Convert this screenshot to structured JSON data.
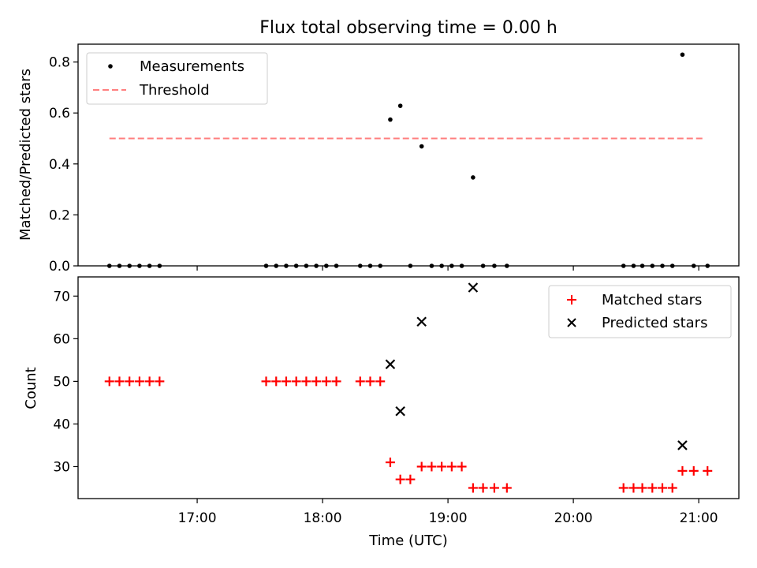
{
  "chart_data": [
    {
      "type": "scatter",
      "title": "Flux total observing time = 0.00 h",
      "ylabel": "Matched/Predicted stars",
      "xlabel": "",
      "xlim": [
        16.05,
        21.32
      ],
      "ylim": [
        0,
        0.87
      ],
      "yticks": [
        0.0,
        0.2,
        0.4,
        0.6,
        0.8
      ],
      "ytick_labels": [
        "0.0",
        "0.2",
        "0.4",
        "0.6",
        "0.8"
      ],
      "legend_position": "top-left",
      "grid": false,
      "series": [
        {
          "name": "Measurements",
          "marker": "dot",
          "color": "#000000",
          "points": [
            [
              16.3,
              0
            ],
            [
              16.38,
              0
            ],
            [
              16.46,
              0
            ],
            [
              16.54,
              0
            ],
            [
              16.62,
              0
            ],
            [
              16.7,
              0
            ],
            [
              17.55,
              0
            ],
            [
              17.63,
              0
            ],
            [
              17.71,
              0
            ],
            [
              17.79,
              0
            ],
            [
              17.87,
              0
            ],
            [
              17.95,
              0
            ],
            [
              18.03,
              0
            ],
            [
              18.11,
              0
            ],
            [
              18.3,
              0
            ],
            [
              18.38,
              0
            ],
            [
              18.46,
              0
            ],
            [
              18.54,
              0.574
            ],
            [
              18.62,
              0.628
            ],
            [
              18.7,
              0
            ],
            [
              18.79,
              0.469
            ],
            [
              18.87,
              0
            ],
            [
              18.95,
              0
            ],
            [
              19.03,
              0
            ],
            [
              19.11,
              0
            ],
            [
              19.2,
              0.347
            ],
            [
              19.28,
              0
            ],
            [
              19.37,
              0
            ],
            [
              19.47,
              0
            ],
            [
              20.4,
              0
            ],
            [
              20.48,
              0
            ],
            [
              20.55,
              0
            ],
            [
              20.63,
              0
            ],
            [
              20.71,
              0
            ],
            [
              20.79,
              0
            ],
            [
              20.87,
              0.829
            ],
            [
              20.96,
              0
            ],
            [
              21.07,
              0
            ]
          ]
        },
        {
          "name": "Threshold",
          "style": "dashed",
          "color": "#ff7f7f",
          "x": [
            16.3,
            21.05
          ],
          "y": [
            0.5,
            0.5
          ]
        }
      ]
    },
    {
      "type": "scatter",
      "title": "",
      "ylabel": "Count",
      "xlabel": "Time (UTC)",
      "xlim": [
        16.05,
        21.32
      ],
      "ylim": [
        22.5,
        74.5
      ],
      "yticks": [
        30,
        40,
        50,
        60,
        70
      ],
      "ytick_labels": [
        "30",
        "40",
        "50",
        "60",
        "70"
      ],
      "xticks": [
        17,
        18,
        19,
        20,
        21
      ],
      "xtick_labels": [
        "17:00",
        "18:00",
        "19:00",
        "20:00",
        "21:00"
      ],
      "legend_position": "top-right",
      "grid": false,
      "series": [
        {
          "name": "Matched stars",
          "marker": "plus",
          "color": "#ff0000",
          "points": [
            [
              16.3,
              50
            ],
            [
              16.38,
              50
            ],
            [
              16.46,
              50
            ],
            [
              16.54,
              50
            ],
            [
              16.62,
              50
            ],
            [
              16.7,
              50
            ],
            [
              17.55,
              50
            ],
            [
              17.63,
              50
            ],
            [
              17.71,
              50
            ],
            [
              17.79,
              50
            ],
            [
              17.87,
              50
            ],
            [
              17.95,
              50
            ],
            [
              18.03,
              50
            ],
            [
              18.11,
              50
            ],
            [
              18.3,
              50
            ],
            [
              18.38,
              50
            ],
            [
              18.46,
              50
            ],
            [
              18.54,
              31
            ],
            [
              18.62,
              27
            ],
            [
              18.7,
              27
            ],
            [
              18.79,
              30
            ],
            [
              18.87,
              30
            ],
            [
              18.95,
              30
            ],
            [
              19.03,
              30
            ],
            [
              19.11,
              30
            ],
            [
              19.2,
              25
            ],
            [
              19.28,
              25
            ],
            [
              19.37,
              25
            ],
            [
              19.47,
              25
            ],
            [
              20.4,
              25
            ],
            [
              20.48,
              25
            ],
            [
              20.55,
              25
            ],
            [
              20.63,
              25
            ],
            [
              20.71,
              25
            ],
            [
              20.79,
              25
            ],
            [
              20.87,
              29
            ],
            [
              20.96,
              29
            ],
            [
              21.07,
              29
            ]
          ]
        },
        {
          "name": "Predicted stars",
          "marker": "x",
          "color": "#000000",
          "points": [
            [
              18.54,
              54
            ],
            [
              18.62,
              43
            ],
            [
              18.79,
              64
            ],
            [
              19.2,
              72
            ],
            [
              20.87,
              35
            ]
          ]
        }
      ]
    }
  ]
}
